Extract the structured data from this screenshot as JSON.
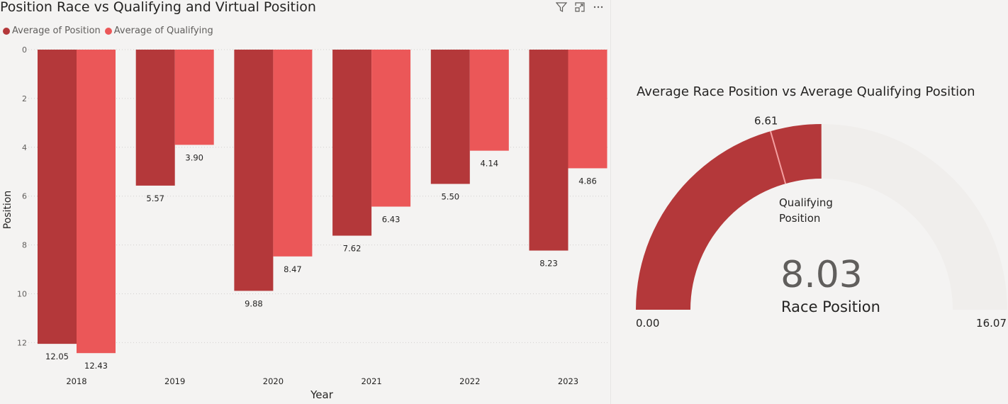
{
  "colors": {
    "position": "#b4383a",
    "qualifying": "#eb5758",
    "gauge_bg": "#f0eeec",
    "grid": "#d2d0ce",
    "target_line": "#f49fa0"
  },
  "chart_title": "Position Race vs Qualifying and Virtual Position",
  "legend": [
    {
      "label": "Average of Position",
      "color": "#b4383a"
    },
    {
      "label": "Average of Qualifying",
      "color": "#eb5758"
    }
  ],
  "toolbar": {
    "filter_icon": "filter-icon",
    "focus_icon": "focus-mode-icon",
    "more_icon": "more-options-icon"
  },
  "chart_data": [
    {
      "type": "bar",
      "title": "Position Race vs Qualifying and Virtual Position",
      "xlabel": "Year",
      "ylabel": "Position",
      "categories": [
        "2018",
        "2019",
        "2020",
        "2021",
        "2022",
        "2023"
      ],
      "series": [
        {
          "name": "Average of Position",
          "values": [
            12.05,
            5.57,
            9.88,
            7.62,
            5.5,
            8.23
          ]
        },
        {
          "name": "Average of Qualifying",
          "values": [
            12.43,
            3.9,
            8.47,
            6.43,
            4.14,
            4.86
          ]
        }
      ],
      "value_labels": {
        "Average of Position": [
          "12.05",
          "5.57",
          "9.88",
          "7.62",
          "5.50",
          "8.23"
        ],
        "Average of Qualifying": [
          "12.43",
          "3.90",
          "8.47",
          "6.43",
          "4.14",
          "4.86"
        ]
      },
      "y_ticks": [
        "0",
        "2",
        "4",
        "6",
        "8",
        "10",
        "12"
      ],
      "ylim": [
        0,
        12.5
      ],
      "y_axis_reversed": true,
      "grid": true,
      "legend_position": "top-left"
    },
    {
      "type": "gauge",
      "title": "Average Race Position vs Average Qualifying Position",
      "value": 8.03,
      "value_label": "8.03",
      "value_caption": "Race Position",
      "min": 0,
      "min_label": "0.00",
      "max": 16.07,
      "max_label": "16.07",
      "target": 6.61,
      "target_label": "6.61",
      "target_caption": [
        "Qualifying",
        "Position"
      ]
    }
  ]
}
